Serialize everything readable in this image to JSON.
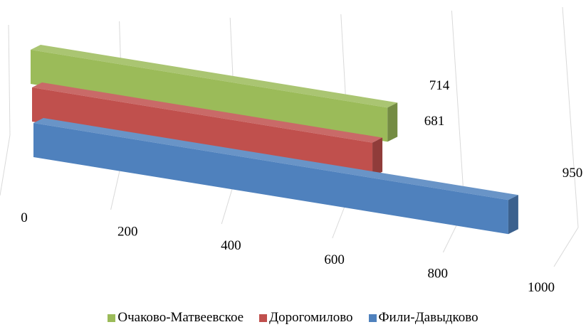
{
  "chart_data": {
    "type": "bar",
    "orientation": "horizontal",
    "style": "3d",
    "series": [
      {
        "name": "Очаково-Матвеевское",
        "value": 714,
        "color": "#9bbb59"
      },
      {
        "name": "Дорогомилово",
        "value": 681,
        "color": "#c0504d"
      },
      {
        "name": "Фили-Давыдково",
        "value": 950,
        "color": "#4f81bd"
      }
    ],
    "xlim": [
      0,
      1000
    ],
    "ticks": [
      "0",
      "200",
      "400",
      "600",
      "800",
      "1000"
    ],
    "gridlines": true,
    "legend_position": "bottom"
  }
}
